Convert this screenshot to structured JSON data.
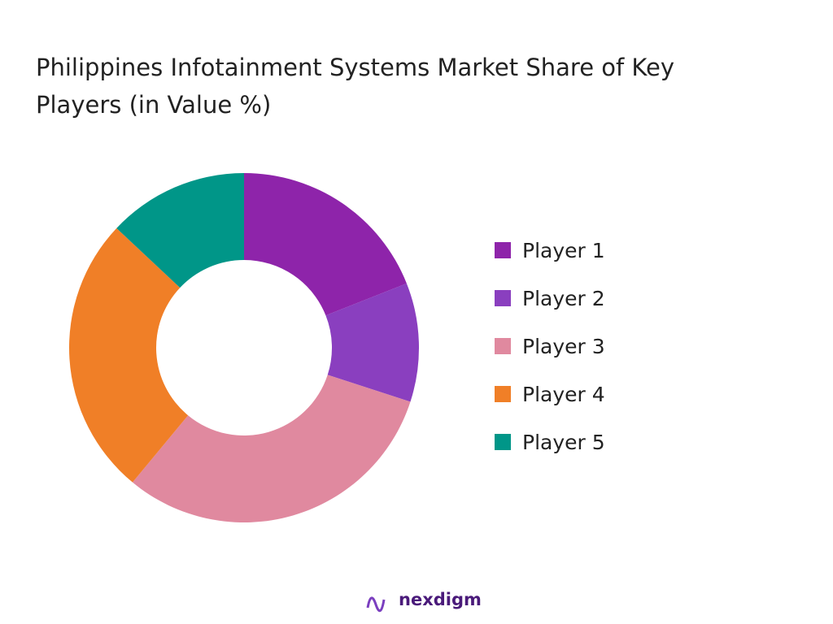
{
  "chart_data": {
    "type": "donut",
    "title": "Philippines Infotainment Systems Market Share of Key Players (in Value %)",
    "categories": [
      "Player 1",
      "Player 2",
      "Player 3",
      "Player 4",
      "Player 5"
    ],
    "values": [
      19,
      11,
      31,
      26,
      13
    ],
    "colors": [
      "#8e24aa",
      "#8a3fbf",
      "#e0899f",
      "#f07f27",
      "#009688"
    ],
    "legend": "right"
  },
  "footer": {
    "logo": "nexdigm"
  }
}
